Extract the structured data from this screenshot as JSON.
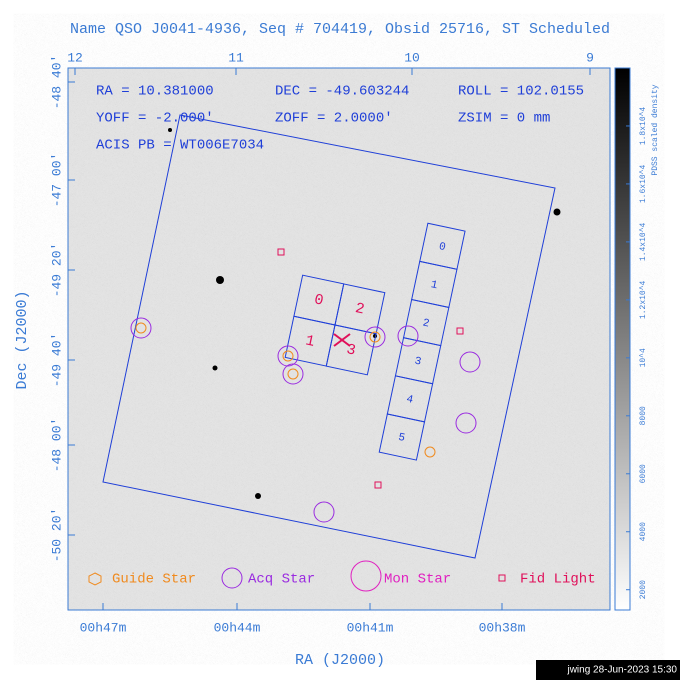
{
  "header": {
    "title": "Name QSO J0041-4936, Seq # 704419, Obsid 25716, ST Scheduled"
  },
  "top_axis": [
    "12",
    "11",
    "10",
    "9"
  ],
  "left_axis": {
    "labels": [
      "-48 40'",
      "-47 00'",
      "-49 20'",
      "-49 40'",
      "-48 00'",
      "-50 20'"
    ],
    "title": "Dec (J2000)"
  },
  "bottom_axis": {
    "labels": [
      "00h47m",
      "00h44m",
      "00h41m",
      "00h38m"
    ],
    "title": "RA (J2000)"
  },
  "info": [
    "RA = 10.381000",
    "DEC = -49.603244",
    "ROLL = 102.0155",
    "YOFF = -2.000'",
    "ZOFF = 2.0000'",
    "ZSIM = 0 mm",
    "ACIS PB = WT006E7034"
  ],
  "chips": [
    "0",
    "1",
    "2",
    "3",
    "4",
    "5"
  ],
  "i_array": [
    "0",
    "2",
    "1",
    "3"
  ],
  "legend": [
    "Guide Star",
    "Acq Star",
    "Mon Star",
    "Fid Light"
  ],
  "colorbar": {
    "title": "PDSS scaled density",
    "lim": [
      1300,
      20000
    ],
    "ticks": [
      2000,
      4000,
      6000,
      8000,
      {
        "value": 10000,
        "label": "10^4"
      },
      {
        "value": 12000,
        "label": "1.2x10^4"
      },
      {
        "value": 14000,
        "label": "1.4x10^4"
      },
      {
        "value": 16000,
        "label": "1.6x10^4"
      },
      {
        "value": 18000,
        "label": "1.8x10^4"
      }
    ]
  },
  "footer": "jwing 28-Jun-2023 15:30"
}
